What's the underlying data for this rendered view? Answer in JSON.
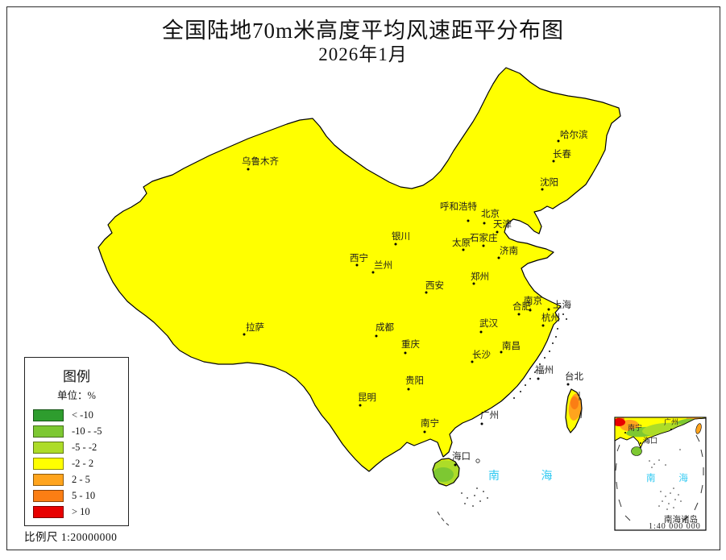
{
  "title": "全国陆地70m米高度平均风速距平分布图",
  "subtitle": "2026年1月",
  "scale_label": "比例尺 1:20000000",
  "sea_label": "南 海",
  "legend": {
    "title": "图例",
    "unit_label": "单位：%",
    "entries": [
      {
        "key": "G",
        "label": "< -10"
      },
      {
        "key": "g",
        "label": "-10 - -5"
      },
      {
        "key": "l",
        "label": "-5 - -2"
      },
      {
        "key": "y",
        "label": "-2 - 2"
      },
      {
        "key": "o",
        "label": "2 - 5"
      },
      {
        "key": "O",
        "label": "5 - 10"
      },
      {
        "key": "r",
        "label": "> 10"
      }
    ]
  },
  "palette": {
    "G": "#2E9D2E",
    "g": "#7DC832",
    "l": "#ADDC28",
    "y": "#FFFF00",
    "o": "#FFA41D",
    "O": "#FB7E14",
    "r": "#E80000"
  },
  "colors": {
    "sea_text": "#2FC9F2",
    "outline": "#000000",
    "frame": "#2B2B2B",
    "province_border": "#6B6B6B"
  },
  "cities": [
    {
      "name": "乌鲁木齐",
      "dot": [
        308,
        210
      ],
      "label": [
        300,
        196
      ]
    },
    {
      "name": "哈尔滨",
      "dot": [
        693,
        175
      ],
      "label": [
        695,
        163
      ]
    },
    {
      "name": "长春",
      "dot": [
        687,
        200
      ],
      "label": [
        686,
        187
      ]
    },
    {
      "name": "沈阳",
      "dot": [
        673,
        235
      ],
      "label": [
        670,
        222
      ]
    },
    {
      "name": "呼和浩特",
      "dot": [
        581,
        274
      ],
      "label": [
        546,
        252
      ]
    },
    {
      "name": "北京",
      "dot": [
        601,
        277
      ],
      "label": [
        597,
        261
      ]
    },
    {
      "name": "天津",
      "dot": [
        617,
        288
      ],
      "label": [
        612,
        274
      ]
    },
    {
      "name": "石家庄",
      "dot": [
        600,
        305
      ],
      "label": [
        583,
        291
      ]
    },
    {
      "name": "太原",
      "dot": [
        575,
        310
      ],
      "label": [
        561,
        297
      ]
    },
    {
      "name": "济南",
      "dot": [
        619,
        320
      ],
      "label": [
        620,
        307
      ]
    },
    {
      "name": "银川",
      "dot": [
        491,
        303
      ],
      "label": [
        486,
        289
      ]
    },
    {
      "name": "西宁",
      "dot": [
        443,
        329
      ],
      "label": [
        434,
        316
      ]
    },
    {
      "name": "兰州",
      "dot": [
        463,
        338
      ],
      "label": [
        464,
        325
      ]
    },
    {
      "name": "郑州",
      "dot": [
        588,
        352
      ],
      "label": [
        584,
        339
      ]
    },
    {
      "name": "西安",
      "dot": [
        529,
        363
      ],
      "label": [
        528,
        350
      ]
    },
    {
      "name": "合肥",
      "dot": [
        644,
        390
      ],
      "label": [
        636,
        376
      ]
    },
    {
      "name": "南京",
      "dot": [
        658,
        385
      ],
      "label": [
        650,
        369
      ]
    },
    {
      "name": "上海",
      "dot": [
        681,
        384
      ],
      "label": [
        686,
        374
      ]
    },
    {
      "name": "杭州",
      "dot": [
        674,
        404
      ],
      "label": [
        672,
        390
      ]
    },
    {
      "name": "武汉",
      "dot": [
        597,
        412
      ],
      "label": [
        595,
        397
      ]
    },
    {
      "name": "成都",
      "dot": [
        467,
        417
      ],
      "label": [
        466,
        402
      ]
    },
    {
      "name": "拉萨",
      "dot": [
        303,
        415
      ],
      "label": [
        305,
        402
      ]
    },
    {
      "name": "重庆",
      "dot": [
        503,
        438
      ],
      "label": [
        498,
        423
      ]
    },
    {
      "name": "南昌",
      "dot": [
        622,
        437
      ],
      "label": [
        623,
        425
      ]
    },
    {
      "name": "长沙",
      "dot": [
        586,
        449
      ],
      "label": [
        586,
        436
      ]
    },
    {
      "name": "贵阳",
      "dot": [
        507,
        483
      ],
      "label": [
        503,
        468
      ]
    },
    {
      "name": "昆明",
      "dot": [
        447,
        503
      ],
      "label": [
        444,
        489
      ]
    },
    {
      "name": "福州",
      "dot": [
        668,
        470
      ],
      "label": [
        664,
        455
      ]
    },
    {
      "name": "台北",
      "dot": [
        705,
        477
      ],
      "label": [
        701,
        463
      ]
    },
    {
      "name": "南宁",
      "dot": [
        527,
        536
      ],
      "label": [
        522,
        521
      ]
    },
    {
      "name": "广州",
      "dot": [
        598,
        526
      ],
      "label": [
        596,
        511
      ]
    },
    {
      "name": "海口",
      "dot": [
        565,
        577
      ],
      "label": [
        561,
        562
      ]
    }
  ],
  "map_blobs": [
    [
      "o",
      650,
      150,
      112,
      78,
      0
    ],
    [
      "o",
      700,
      235,
      62,
      58,
      0
    ],
    [
      "o",
      600,
      120,
      34,
      22,
      -10
    ],
    [
      "o",
      575,
      210,
      30,
      40,
      15
    ],
    [
      "o",
      465,
      222,
      30,
      14,
      -5
    ],
    [
      "o",
      480,
      280,
      88,
      62,
      0
    ],
    [
      "o",
      540,
      340,
      52,
      36,
      8
    ],
    [
      "o",
      590,
      290,
      58,
      46,
      0
    ],
    [
      "o",
      640,
      300,
      26,
      18,
      0
    ],
    [
      "o",
      300,
      300,
      56,
      46,
      0
    ],
    [
      "o",
      245,
      322,
      36,
      18,
      12
    ],
    [
      "o",
      210,
      268,
      46,
      28,
      -20
    ],
    [
      "o",
      350,
      240,
      30,
      22,
      0
    ],
    [
      "o",
      210,
      378,
      22,
      10,
      15
    ],
    [
      "o",
      398,
      398,
      18,
      14,
      0
    ],
    [
      "o",
      630,
      370,
      62,
      36,
      5
    ],
    [
      "o",
      600,
      402,
      26,
      14,
      0
    ],
    [
      "o",
      655,
      445,
      46,
      56,
      15
    ],
    [
      "o",
      515,
      425,
      46,
      30,
      10
    ],
    [
      "o",
      410,
      515,
      22,
      30,
      5
    ],
    [
      "o",
      448,
      484,
      18,
      12,
      0
    ],
    [
      "o",
      478,
      542,
      16,
      10,
      -15
    ],
    [
      "o",
      555,
      510,
      13,
      8,
      0
    ],
    [
      "o",
      598,
      502,
      14,
      8,
      0
    ],
    [
      "o",
      345,
      440,
      18,
      12,
      0
    ],
    [
      "o",
      714,
      505,
      8,
      17,
      8
    ],
    [
      "o",
      560,
      578,
      7,
      4,
      0
    ],
    [
      "O",
      640,
      100,
      60,
      35,
      -15
    ],
    [
      "O",
      736,
      168,
      36,
      76,
      8
    ],
    [
      "O",
      455,
      285,
      42,
      46,
      0
    ],
    [
      "O",
      505,
      315,
      26,
      20,
      0
    ],
    [
      "O",
      545,
      330,
      20,
      16,
      0
    ],
    [
      "O",
      570,
      280,
      18,
      22,
      0
    ],
    [
      "O",
      600,
      320,
      19,
      14,
      0
    ],
    [
      "O",
      335,
      280,
      18,
      14,
      0
    ],
    [
      "O",
      330,
      330,
      13,
      10,
      0
    ],
    [
      "O",
      215,
      268,
      22,
      14,
      -20
    ],
    [
      "O",
      355,
      236,
      20,
      14,
      0
    ],
    [
      "O",
      610,
      350,
      20,
      12,
      0
    ],
    [
      "O",
      655,
      390,
      18,
      10,
      0
    ],
    [
      "O",
      675,
      430,
      18,
      25,
      10
    ],
    [
      "O",
      650,
      470,
      15,
      18,
      0
    ],
    [
      "O",
      505,
      435,
      20,
      15,
      10
    ],
    [
      "O",
      540,
      420,
      13,
      10,
      0
    ],
    [
      "O",
      404,
      512,
      16,
      24,
      5
    ],
    [
      "O",
      397,
      395,
      12,
      10,
      0
    ],
    [
      "O",
      453,
      427,
      11,
      9,
      0
    ],
    [
      "O",
      348,
      443,
      9,
      7,
      0
    ],
    [
      "O",
      713,
      500,
      5,
      8,
      0
    ],
    [
      "O",
      556,
      592,
      4,
      3,
      0
    ],
    [
      "y",
      683,
      195,
      36,
      30,
      0
    ],
    [
      "y",
      658,
      242,
      26,
      20,
      0
    ],
    [
      "y",
      628,
      168,
      18,
      26,
      0
    ],
    [
      "y",
      520,
      262,
      22,
      18,
      0
    ],
    [
      "y",
      560,
      310,
      12,
      16,
      0
    ],
    [
      "l",
      198,
      195,
      18,
      10,
      -20
    ],
    [
      "l",
      150,
      300,
      26,
      46,
      15
    ],
    [
      "l",
      165,
      255,
      20,
      15,
      0
    ],
    [
      "l",
      355,
      158,
      30,
      10,
      -18
    ],
    [
      "l",
      315,
      205,
      42,
      18,
      -10
    ],
    [
      "l",
      230,
      360,
      30,
      12,
      20
    ],
    [
      "l",
      180,
      370,
      16,
      10,
      0
    ],
    [
      "l",
      300,
      420,
      95,
      40,
      3
    ],
    [
      "l",
      320,
      395,
      80,
      26,
      3
    ],
    [
      "l",
      260,
      445,
      52,
      18,
      -5
    ],
    [
      "l",
      445,
      345,
      32,
      16,
      -10
    ],
    [
      "l",
      495,
      370,
      26,
      14,
      0
    ],
    [
      "l",
      558,
      255,
      11,
      7,
      0
    ],
    [
      "l",
      636,
      316,
      9,
      6,
      0
    ],
    [
      "l",
      672,
      135,
      26,
      18,
      0
    ],
    [
      "l",
      648,
      160,
      13,
      20,
      20
    ],
    [
      "l",
      668,
      235,
      19,
      22,
      0
    ],
    [
      "l",
      740,
      205,
      14,
      18,
      0
    ],
    [
      "l",
      600,
      460,
      24,
      17,
      0
    ],
    [
      "l",
      520,
      470,
      27,
      16,
      10
    ],
    [
      "l",
      462,
      434,
      15,
      23,
      0
    ],
    [
      "l",
      472,
      510,
      31,
      23,
      0
    ],
    [
      "l",
      565,
      530,
      62,
      22,
      3
    ],
    [
      "l",
      644,
      443,
      9,
      6,
      0
    ],
    [
      "l",
      668,
      455,
      6,
      4,
      0
    ],
    [
      "l",
      690,
      400,
      8,
      6,
      0
    ],
    [
      "l",
      554,
      586,
      20,
      15,
      0
    ],
    [
      "g",
      196,
      194,
      9,
      5,
      -20
    ],
    [
      "g",
      310,
      200,
      26,
      12,
      -10
    ],
    [
      "g",
      355,
      160,
      23,
      10,
      -25
    ],
    [
      "g",
      140,
      320,
      15,
      36,
      10
    ],
    [
      "g",
      155,
      260,
      12,
      10,
      0
    ],
    [
      "g",
      300,
      422,
      70,
      30,
      3
    ],
    [
      "g",
      435,
      340,
      20,
      12,
      -10
    ],
    [
      "g",
      490,
      372,
      15,
      8,
      0
    ],
    [
      "g",
      556,
      254,
      6,
      4,
      0
    ],
    [
      "g",
      675,
      130,
      15,
      10,
      0
    ],
    [
      "g",
      665,
      230,
      11,
      14,
      0
    ],
    [
      "g",
      598,
      458,
      13,
      9,
      0
    ],
    [
      "g",
      515,
      472,
      13,
      8,
      10
    ],
    [
      "g",
      470,
      507,
      23,
      17,
      0
    ],
    [
      "g",
      545,
      535,
      26,
      12,
      0
    ],
    [
      "g",
      590,
      540,
      21,
      10,
      0
    ],
    [
      "g",
      525,
      515,
      15,
      10,
      0
    ],
    [
      "g",
      550,
      589,
      13,
      9,
      0
    ],
    [
      "g",
      552,
      552,
      8,
      12,
      0
    ],
    [
      "G",
      303,
      208,
      8,
      5,
      0
    ],
    [
      "G",
      352,
      157,
      8,
      5,
      0
    ],
    [
      "G",
      250,
      430,
      15,
      10,
      0
    ],
    [
      "G",
      360,
      425,
      10,
      8,
      0
    ],
    [
      "G",
      430,
      345,
      8,
      6,
      0
    ],
    [
      "G",
      468,
      505,
      14,
      11,
      0
    ],
    [
      "G",
      648,
      79,
      8,
      4,
      0
    ],
    [
      "r",
      640,
      100,
      45,
      26,
      -15
    ],
    [
      "r",
      735,
      168,
      32,
      72,
      8
    ],
    [
      "r",
      718,
      245,
      22,
      18,
      0
    ],
    [
      "r",
      756,
      145,
      14,
      20,
      0
    ],
    [
      "r",
      600,
      88,
      25,
      12,
      -5
    ],
    [
      "r",
      677,
      197,
      5,
      4,
      0
    ],
    [
      "r",
      455,
      265,
      28,
      32,
      10
    ],
    [
      "r",
      448,
      305,
      18,
      20,
      0
    ],
    [
      "r",
      500,
      308,
      12,
      9,
      0
    ],
    [
      "r",
      528,
      322,
      9,
      7,
      0
    ],
    [
      "r",
      432,
      230,
      6,
      5,
      0
    ],
    [
      "r",
      468,
      232,
      5,
      4,
      0
    ],
    [
      "r",
      425,
      333,
      7,
      6,
      0
    ],
    [
      "r",
      565,
      278,
      12,
      14,
      0
    ],
    [
      "r",
      604,
      323,
      13,
      9,
      0
    ],
    [
      "r",
      585,
      255,
      7,
      6,
      0
    ],
    [
      "r",
      628,
      283,
      5,
      4,
      0
    ],
    [
      "r",
      360,
      235,
      12,
      9,
      0
    ],
    [
      "r",
      190,
      238,
      5,
      4,
      0
    ],
    [
      "r",
      265,
      210,
      4,
      3,
      0
    ],
    [
      "r",
      183,
      373,
      8,
      6,
      0
    ],
    [
      "r",
      397,
      395,
      7,
      5,
      0
    ],
    [
      "r",
      453,
      427,
      6,
      5,
      0
    ],
    [
      "r",
      402,
      512,
      11,
      18,
      5
    ],
    [
      "r",
      427,
      549,
      6,
      5,
      0
    ],
    [
      "r",
      492,
      523,
      5,
      4,
      0
    ],
    [
      "r",
      598,
      347,
      6,
      5,
      0
    ],
    [
      "r",
      596,
      395,
      5,
      4,
      0
    ],
    [
      "r",
      538,
      443,
      7,
      6,
      0
    ],
    [
      "r",
      566,
      431,
      9,
      7,
      0
    ],
    [
      "r",
      495,
      460,
      7,
      6,
      0
    ],
    [
      "r",
      678,
      428,
      10,
      14,
      10
    ],
    [
      "r",
      647,
      467,
      8,
      10,
      0
    ],
    [
      "r",
      625,
      492,
      6,
      5,
      0
    ],
    [
      "r",
      648,
      390,
      5,
      4,
      0
    ]
  ],
  "inset": {
    "sea_label": "南 海",
    "islands_label": "南海诸岛",
    "scale_label": "1:40 000 000",
    "cities": [
      {
        "name": "南宁",
        "dot": [
          776,
          537
        ],
        "label": [
          779,
          527
        ]
      },
      {
        "name": "广州",
        "dot": [
          833,
          533
        ],
        "label": [
          824,
          520
        ]
      },
      {
        "name": "海口",
        "dot": [
          795,
          550
        ],
        "label": [
          798,
          543
        ]
      }
    ],
    "blobs": [
      [
        "o",
        781,
        528,
        12,
        7,
        0
      ],
      [
        "o",
        861,
        521,
        10,
        4,
        0
      ],
      [
        "g",
        799,
        536,
        22,
        6,
        -5
      ],
      [
        "g",
        852,
        525,
        14,
        5,
        -8
      ],
      [
        "l",
        824,
        533,
        27,
        8,
        -5
      ],
      [
        "O",
        770,
        521,
        5,
        4,
        0
      ],
      [
        "r",
        768,
        524,
        8,
        5,
        0
      ]
    ]
  }
}
